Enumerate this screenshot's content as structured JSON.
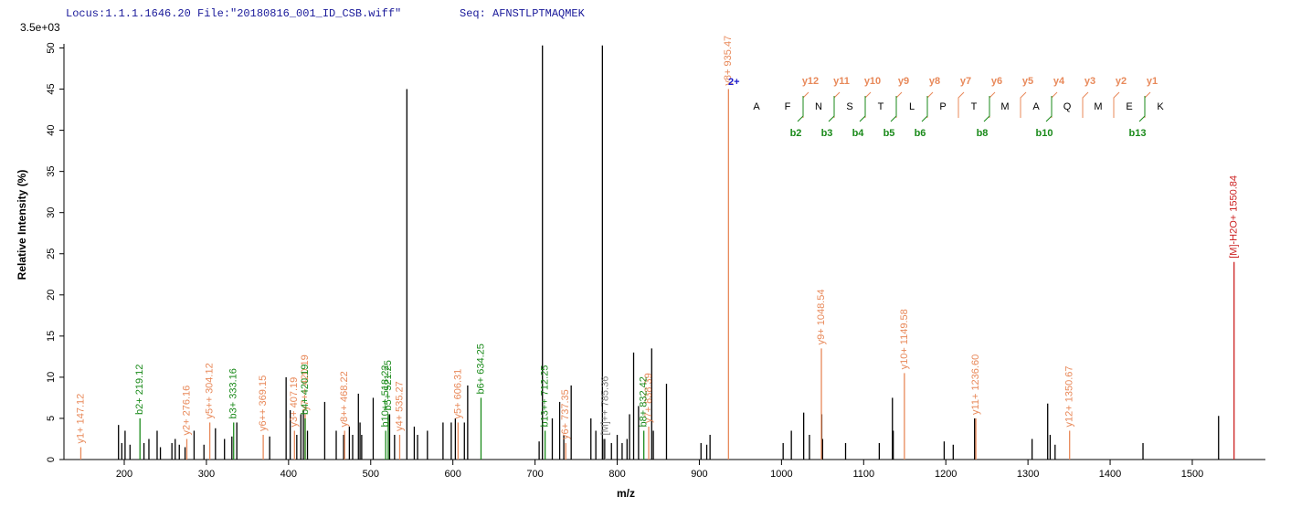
{
  "chart_data": {
    "type": "spectrum",
    "title": "Locus:1.1.1.1646.20 File:\"20180816_001_ID_CSB.wiff\"",
    "subtitle": "Seq: AFNSTLPTMAQMEK",
    "scale_label": "3.5e+03",
    "x_label": "m/z",
    "y_label": "Relative   Intensity (%)",
    "xlim": [
      126.6,
      1589
    ],
    "ylim": [
      0,
      50.5
    ],
    "xticks": [
      200,
      300,
      400,
      500,
      600,
      700,
      800,
      900,
      1000,
      1100,
      1200,
      1300,
      1400,
      1500
    ],
    "yticks": [
      0,
      5,
      10,
      15,
      20,
      25,
      30,
      35,
      40,
      45,
      50
    ],
    "series": [
      {
        "color": "#000000",
        "x": [
          193,
          197,
          201,
          207,
          224,
          230,
          240,
          244,
          258,
          262,
          267,
          274,
          285,
          297,
          311,
          322,
          331,
          337,
          377,
          397,
          402,
          410,
          415,
          418,
          423,
          444,
          458,
          467,
          474,
          478,
          485,
          487,
          489,
          503,
          523,
          529,
          544,
          553,
          557,
          569,
          588,
          598,
          603,
          614,
          618,
          705,
          709,
          721,
          730,
          735,
          744,
          768,
          774,
          782,
          784,
          793,
          800,
          806,
          812,
          815,
          820,
          826,
          842,
          844,
          860,
          902,
          909,
          913,
          1002,
          1012,
          1027,
          1034,
          1049,
          1050,
          1078,
          1119,
          1135,
          1136,
          1198,
          1209,
          1235,
          1305,
          1324,
          1327,
          1333,
          1440,
          1532
        ],
        "values": [
          4.2,
          2,
          3.5,
          1.8,
          2,
          2.5,
          3.5,
          1.5,
          2,
          2.5,
          1.8,
          1.5,
          3.5,
          1.8,
          3.8,
          2.5,
          2.8,
          4.5,
          2.8,
          10,
          6,
          3,
          5.5,
          6,
          3.5,
          7,
          3.5,
          3,
          4,
          3,
          8,
          4.5,
          3,
          7.5,
          5.5,
          3,
          45,
          4,
          3,
          3.5,
          4.5,
          4.5,
          5,
          4.5,
          9,
          2.2,
          50.3,
          5,
          7,
          3,
          9,
          5,
          3.5,
          50.3,
          2.5,
          2,
          3,
          2,
          2.5,
          5.5,
          13,
          6.5,
          13.5,
          3.5,
          9.2,
          2,
          1.8,
          3,
          2,
          3.5,
          5.7,
          3,
          5.5,
          2.5,
          2,
          2,
          7.5,
          3.5,
          2.2,
          1.8,
          5,
          2.5,
          6.8,
          3,
          1.8,
          2,
          5.3
        ]
      },
      {
        "color": "#e8895a",
        "x": [
          147.12,
          276.16,
          304.12,
          369.15,
          407.19,
          420.19,
          468.22,
          535.27,
          606.31,
          737.35,
          838.39,
          935.47,
          1048.54,
          1149.58,
          1236.6,
          1350.67
        ],
        "values": [
          1.5,
          2.5,
          4.5,
          3,
          3.5,
          5.5,
          3.5,
          3,
          4.5,
          2,
          4,
          45,
          13.5,
          10.5,
          5,
          3.5
        ],
        "labels": [
          "y1+ 147.12",
          "y2+ 276.16",
          "y5++ 304.12",
          "y6++ 369.15",
          "y3+ 407.19",
          "y7++ 420.19",
          "y8++ 468.22",
          "y4+ 535.27",
          "y5+ 606.31",
          "y6+ 737.35",
          "y7+ 838.39",
          "y8+ 935.47",
          "y9+ 1048.54",
          "y10+ 1149.58",
          "y11+ 1236.60",
          "y12+ 1350.67"
        ]
      },
      {
        "color": "#1a8a1a",
        "x": [
          219.12,
          333.16,
          420.19,
          518.22,
          521.25,
          634.25,
          712.25,
          832.42
        ],
        "values": [
          5,
          4.5,
          5,
          3.5,
          5.5,
          7.5,
          3.5,
          3.5
        ],
        "labels": [
          "b2+ 219.12",
          "b3+ 333.16",
          "b4+ 420.19",
          "b10++ 518.22",
          "b5+ 521.25",
          "b6+ 634.25",
          "b13++ 712.25",
          "b8+ 832.42"
        ]
      },
      {
        "color": "#808080",
        "x": [
          785.36
        ],
        "values": [
          2.5
        ],
        "labels": [
          "[M]++ 785.36"
        ]
      },
      {
        "color": "#cc2222",
        "x": [
          1550.84
        ],
        "values": [
          24
        ],
        "labels": [
          "[M]-H2O+ 1550.84"
        ]
      }
    ],
    "sequence": {
      "charge": "2+",
      "residues": [
        "A",
        "F",
        "N",
        "S",
        "T",
        "L",
        "P",
        "T",
        "M",
        "A",
        "Q",
        "M",
        "E",
        "K"
      ],
      "y_ions": [
        null,
        "y12",
        "y11",
        "y10",
        "y9",
        "y8",
        "y7",
        "y6",
        "y5",
        "y4",
        "y3",
        "y2",
        "y1"
      ],
      "b_ions": [
        null,
        "b2",
        "b3",
        "b4",
        "b5",
        "b6",
        null,
        "b8",
        null,
        "b10",
        null,
        null,
        "b13"
      ]
    }
  }
}
